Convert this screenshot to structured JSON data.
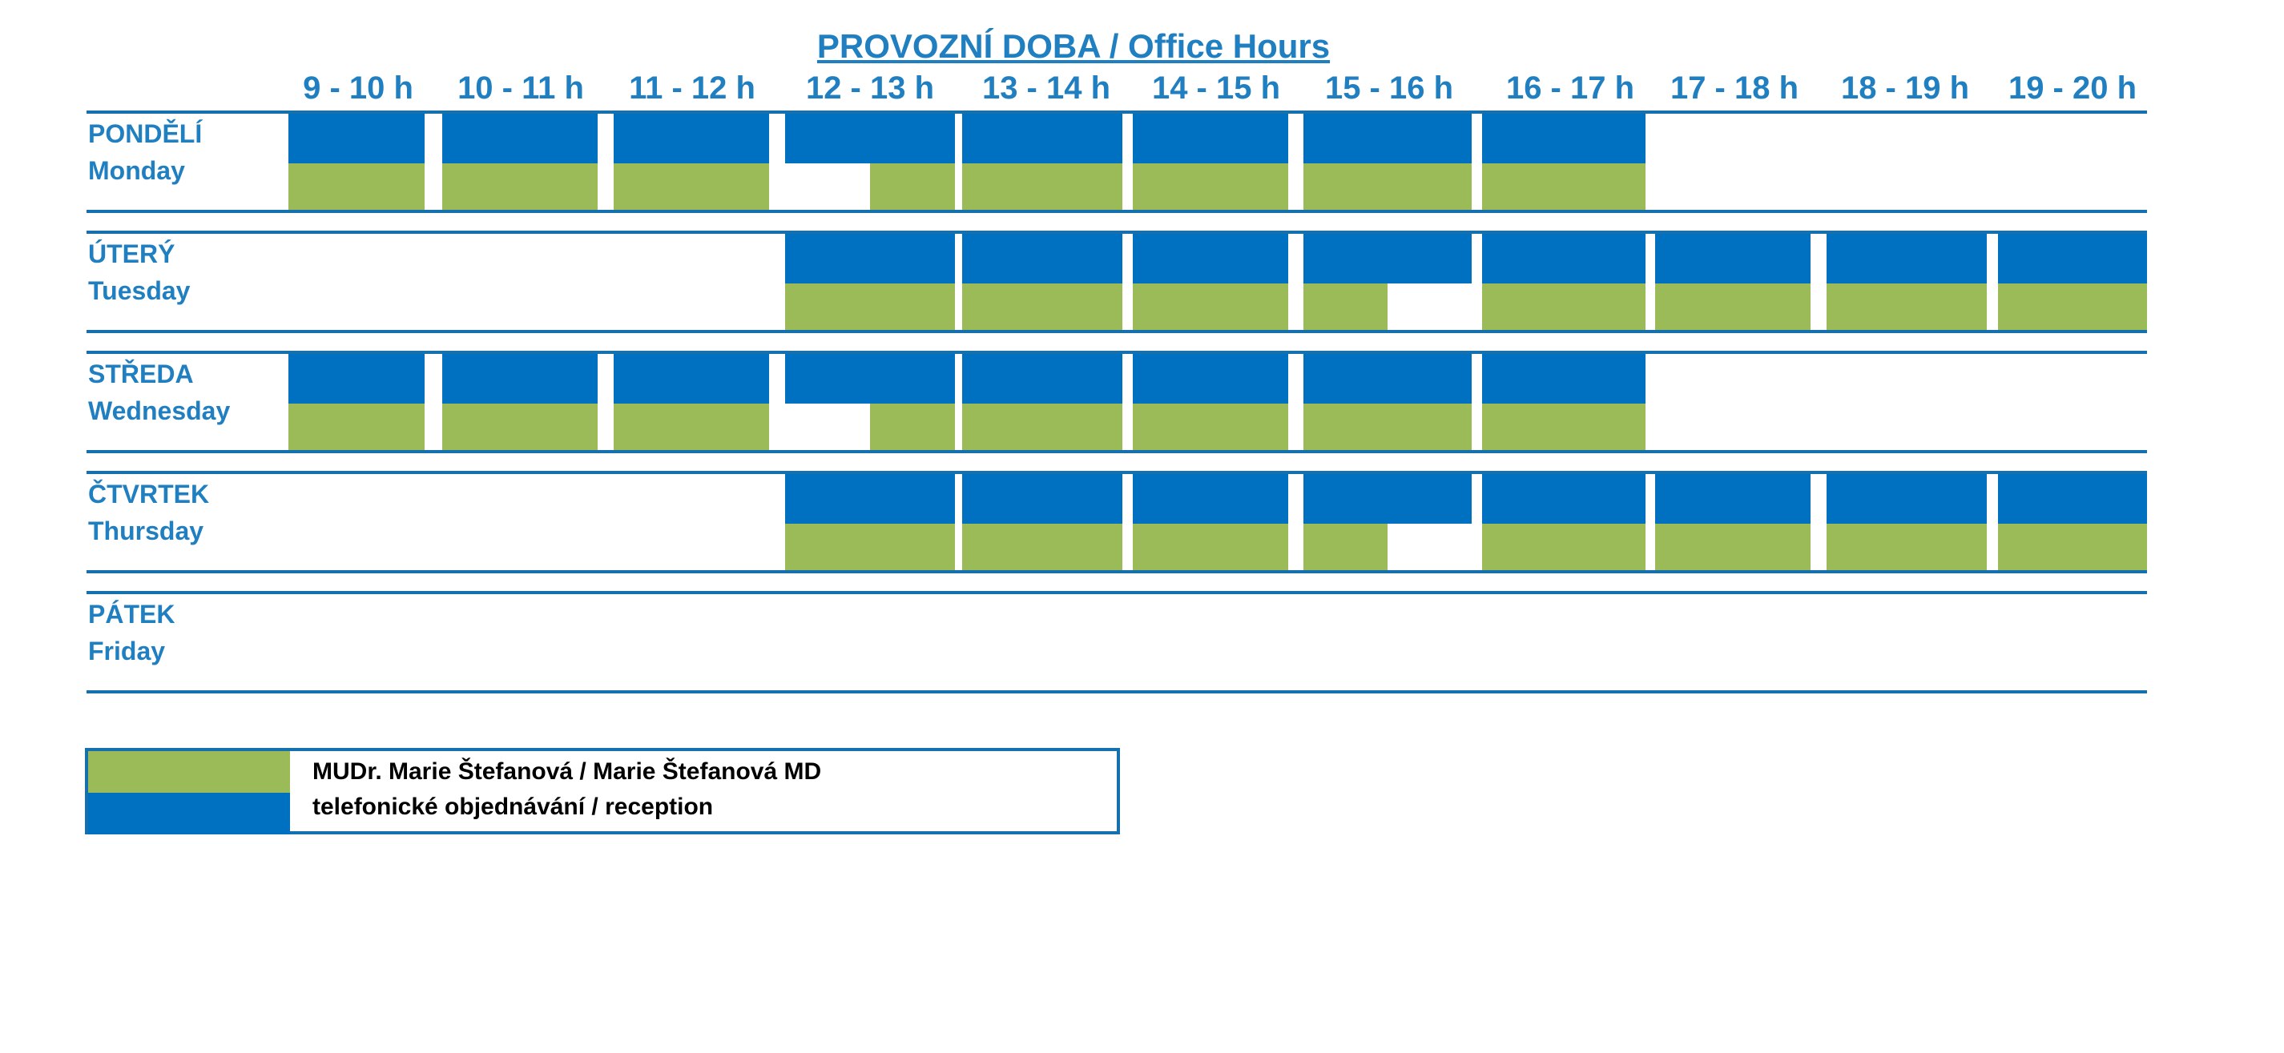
{
  "title": "PROVOZNÍ DOBA / Office Hours",
  "hours": [
    "9 - 10 h",
    "10 - 11 h",
    "11 - 12 h",
    "12 - 13 h",
    "13 - 14 h",
    "14 - 15 h",
    "15 - 16 h",
    "16 - 17 h",
    "17 - 18 h",
    "18 - 19 h",
    "19 - 20 h"
  ],
  "days": [
    {
      "cz": "PONDĚLÍ",
      "en": "Monday",
      "reception": [
        1,
        1,
        1,
        1,
        1,
        1,
        1,
        1,
        0,
        0,
        0
      ],
      "doctor": [
        1,
        1,
        1,
        0.5,
        1,
        1,
        1,
        1,
        0,
        0,
        0
      ]
    },
    {
      "cz": "ÚTERÝ",
      "en": "Tuesday",
      "reception": [
        0,
        0,
        0,
        1,
        1,
        1,
        1,
        1,
        1,
        1,
        1
      ],
      "doctor": [
        0,
        0,
        0,
        1,
        1,
        1,
        0.5,
        1,
        1,
        1,
        1
      ]
    },
    {
      "cz": "STŘEDA",
      "en": "Wednesday",
      "reception": [
        1,
        1,
        1,
        1,
        1,
        1,
        1,
        1,
        0,
        0,
        0
      ],
      "doctor": [
        1,
        1,
        1,
        0.5,
        1,
        1,
        1,
        1,
        0,
        0,
        0
      ]
    },
    {
      "cz": "ČTVRTEK",
      "en": "Thursday",
      "reception": [
        0,
        0,
        0,
        1,
        1,
        1,
        1,
        1,
        1,
        1,
        1
      ],
      "doctor": [
        0,
        0,
        0,
        1,
        1,
        1,
        0.5,
        1,
        1,
        1,
        1
      ]
    },
    {
      "cz": "PÁTEK",
      "en": "Friday",
      "reception": [
        0,
        0,
        0,
        0,
        0,
        0,
        0,
        0,
        0,
        0,
        0
      ],
      "doctor": [
        0,
        0,
        0,
        0,
        0,
        0,
        0,
        0,
        0,
        0,
        0
      ]
    }
  ],
  "legend": {
    "doctor": "MUDr. Marie Štefanová / Marie Štefanová MD",
    "reception": "telefonické objednávání / reception"
  },
  "colors": {
    "doctor": "#9bbb59",
    "reception": "#0070c0",
    "text": "#1f7fc0",
    "lines": "#1570ad"
  }
}
